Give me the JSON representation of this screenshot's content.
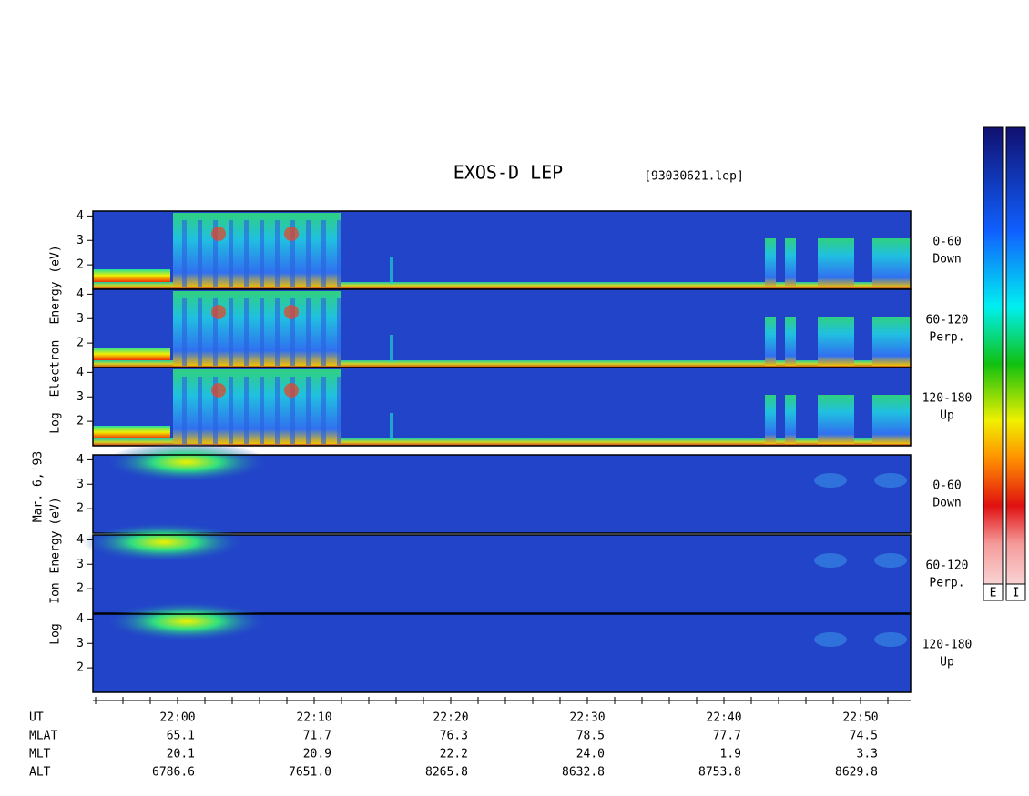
{
  "title": "EXOS-D LEP",
  "file": "[93030621.lep]",
  "date": "Mar. 6,'93",
  "ylim": [
    1,
    4.2
  ],
  "yticks": [
    2,
    3,
    4
  ],
  "electron": {
    "label": [
      "Log",
      "Electron",
      "Energy",
      "(eV)"
    ],
    "panels": [
      {
        "angle": "0-60",
        "direction": "Down"
      },
      {
        "angle": "60-120",
        "direction": "Perp."
      },
      {
        "angle": "120-180",
        "direction": "Up"
      }
    ]
  },
  "ion": {
    "label": [
      "Log",
      "Ion",
      "Energy",
      "(eV)"
    ],
    "panels": [
      {
        "angle": "0-60",
        "direction": "Down"
      },
      {
        "angle": "60-120",
        "direction": "Perp."
      },
      {
        "angle": "120-180",
        "direction": "Up"
      }
    ]
  },
  "colorbars": [
    "E",
    "I"
  ],
  "table": {
    "row_labels": [
      "UT",
      "MLAT",
      "MLT",
      "ALT"
    ],
    "UT": [
      "22:00",
      "22:10",
      "22:20",
      "22:30",
      "22:40",
      "22:50"
    ],
    "MLAT": [
      "65.1",
      "71.7",
      "76.3",
      "78.5",
      "77.7",
      "74.5"
    ],
    "MLT": [
      "20.1",
      "20.9",
      "22.2",
      "24.0",
      "1.9",
      "3.3"
    ],
    "ALT": [
      "6786.6",
      "7651.0",
      "8265.8",
      "8632.8",
      "8753.8",
      "8629.8"
    ]
  }
}
